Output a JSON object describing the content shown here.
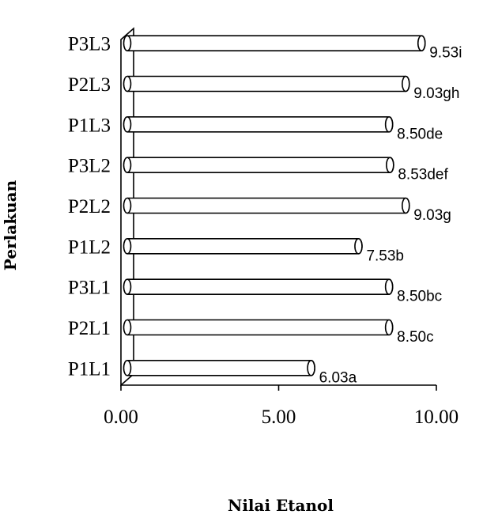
{
  "chart_data": {
    "type": "bar",
    "orientation": "horizontal",
    "style": "3d-cylinder",
    "categories": [
      "P1L1",
      "P2L1",
      "P3L1",
      "P1L2",
      "P2L2",
      "P3L2",
      "P1L3",
      "P2L3",
      "P3L3"
    ],
    "values": [
      6.03,
      8.5,
      8.5,
      7.53,
      9.03,
      8.53,
      8.5,
      9.03,
      9.53
    ],
    "data_labels": [
      "6.03a",
      "8.50c",
      "8.50bc",
      "7.53b",
      "9.03g",
      "8.53def",
      "8.50de",
      "9.03gh",
      "9.53i"
    ],
    "xlabel": "Nilai Etanol",
    "ylabel": "Perlakuan",
    "xlim": [
      0,
      10
    ],
    "x_ticks": [
      "0.00",
      "5.00",
      "10.00"
    ],
    "grid": false,
    "colors": {
      "bar_fill": "#ffffff",
      "bar_stroke": "#000000"
    }
  }
}
